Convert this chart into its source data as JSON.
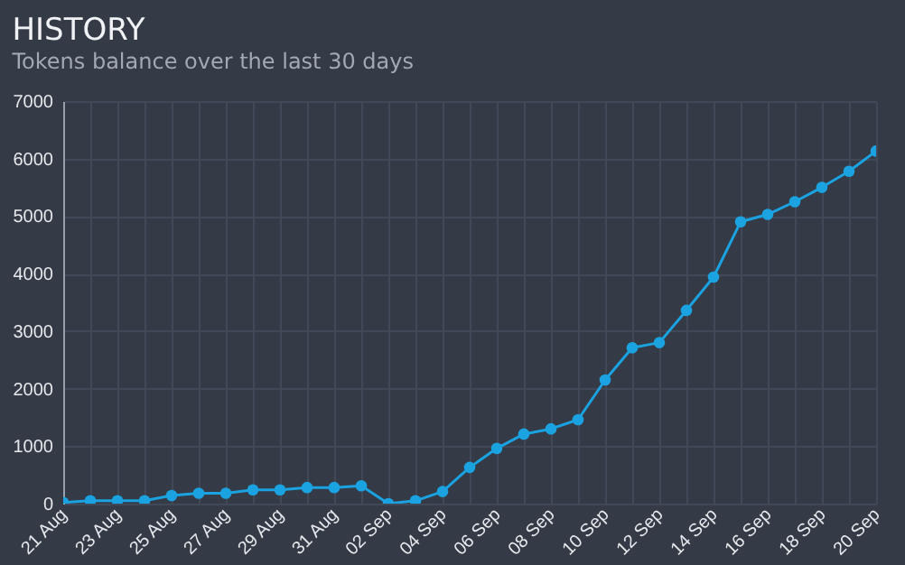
{
  "chart_data": {
    "type": "line",
    "title": "HISTORY",
    "subtitle": "Tokens balance over the last 30 days",
    "categories": [
      "21 Aug",
      null,
      "23 Aug",
      null,
      "25 Aug",
      null,
      "27 Aug",
      null,
      "29 Aug",
      null,
      "31 Aug",
      null,
      "02 Sep",
      null,
      "04 Sep",
      null,
      "06 Sep",
      null,
      "08 Sep",
      null,
      "10 Sep",
      null,
      "12 Sep",
      null,
      "14 Sep",
      null,
      "16 Sep",
      null,
      "18 Sep",
      null,
      "20 Sep"
    ],
    "series": [
      {
        "color": "#1aa3e0",
        "values": [
          20,
          50,
          50,
          50,
          140,
          180,
          180,
          240,
          240,
          280,
          280,
          310,
          0,
          50,
          210,
          630,
          960,
          1210,
          1300,
          1460,
          2150,
          2710,
          2800,
          3360,
          3940,
          4900,
          5030,
          5250,
          5500,
          5780,
          6130
        ]
      }
    ],
    "ylim": [
      0,
      7000
    ],
    "yticks": [
      0,
      1000,
      2000,
      3000,
      4000,
      5000,
      6000,
      7000
    ],
    "grid": true,
    "marker": "circle"
  }
}
